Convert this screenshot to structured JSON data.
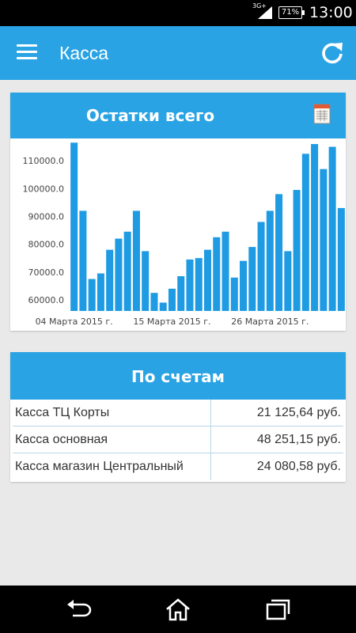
{
  "status_bar": {
    "network": "3G+",
    "battery": "71%",
    "time": "13:00"
  },
  "app_bar": {
    "title": "Касса"
  },
  "chart_card": {
    "title": "Остатки всего"
  },
  "chart_data": {
    "type": "bar",
    "title": "Остатки всего",
    "color": "#1e9be3",
    "ylim": [
      56000,
      118000
    ],
    "yticks": [
      "60000.0",
      "70000.0",
      "80000.0",
      "90000.0",
      "100000.0",
      "110000.0"
    ],
    "ytick_values": [
      60000,
      70000,
      80000,
      90000,
      100000,
      110000
    ],
    "xtick_labels": [
      "04 Марта 2015 г.",
      "15 Марта 2015 г.",
      "26 Марта 2015 г."
    ],
    "xtick_positions": [
      0,
      11,
      22
    ],
    "values": [
      116500,
      92000,
      67500,
      69500,
      78000,
      82000,
      84500,
      92000,
      77500,
      62500,
      59000,
      64000,
      68500,
      74500,
      75000,
      78000,
      82500,
      84500,
      68000,
      74000,
      79000,
      88000,
      92000,
      98000,
      77500,
      99500,
      112500,
      116000,
      107000,
      115000,
      93000
    ]
  },
  "accounts_card": {
    "title": "По счетам",
    "rows": [
      {
        "name": "Касса ТЦ Корты",
        "value": "21 125,64 руб."
      },
      {
        "name": "Касса основная",
        "value": "48 251,15 руб."
      },
      {
        "name": "Касса магазин Центральный",
        "value": "24 080,58 руб."
      }
    ]
  },
  "colors": {
    "accent": "#29a3e4",
    "bars": "#1e9be3",
    "background": "#e9e9e9"
  },
  "icons": {
    "menu": "menu-icon",
    "refresh": "refresh-icon",
    "report": "report-icon",
    "back": "back-icon",
    "home": "home-icon",
    "recents": "recents-icon"
  }
}
